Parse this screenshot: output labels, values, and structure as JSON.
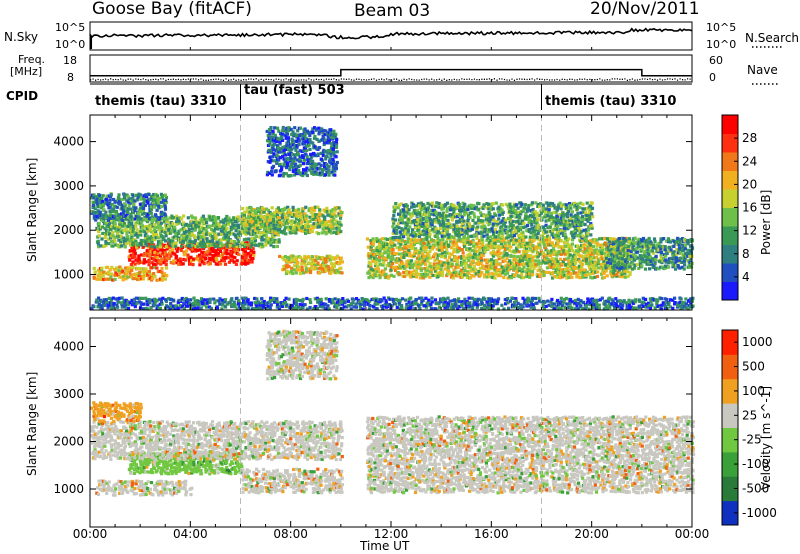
{
  "header": {
    "station": "Goose Bay (fitACF)",
    "beam": "Beam 03",
    "date": "20/Nov/2011"
  },
  "nsky_panel": {
    "left_label": "N.Sky",
    "left_ticks": [
      "10^5",
      "10^0"
    ],
    "right_ticks": [
      "10^5",
      "10^0"
    ],
    "right_label": "N.Search"
  },
  "freq_panel": {
    "left_label_1": "Freq.",
    "left_label_2": "[MHz]",
    "left_ticks": [
      "18",
      "8"
    ],
    "right_ticks": [
      "60",
      "0"
    ],
    "right_label": "Nave"
  },
  "cpid": {
    "label": "CPID",
    "segments": [
      {
        "name": "themis (tau) 3310",
        "start": 0.0,
        "end": 6.0
      },
      {
        "name": "tau (fast) 503",
        "start": 6.0,
        "end": 18.0
      },
      {
        "name": "themis (tau) 3310",
        "start": 18.0,
        "end": 24.0
      }
    ]
  },
  "chart_data": [
    {
      "type": "heatmap",
      "title": "",
      "ylabel": "Slant Range [km]",
      "xlabel": "Time UT",
      "xlim": [
        0,
        24
      ],
      "ylim": [
        200,
        4600
      ],
      "yticks": [
        "1000",
        "2000",
        "3000",
        "4000"
      ],
      "colorbar": {
        "label": "Power [dB]",
        "ticks": [
          "4",
          "8",
          "12",
          "16",
          "20",
          "24",
          "28"
        ],
        "colors": [
          "#1a1aff",
          "#2050c0",
          "#2f7f80",
          "#3a9a55",
          "#6ec04a",
          "#c8d030",
          "#f0b020",
          "#f07818",
          "#ff3010",
          "#ff0000"
        ]
      },
      "bands": [
        {
          "t0": 0.1,
          "t1": 3.0,
          "r_lo": 850,
          "r_hi": 1150,
          "level": 20
        },
        {
          "t0": 1.5,
          "t1": 6.5,
          "r_lo": 1200,
          "r_hi": 1700,
          "level": 26
        },
        {
          "t0": 0.2,
          "t1": 7.5,
          "r_lo": 1600,
          "r_hi": 2300,
          "level": 12
        },
        {
          "t0": 0.0,
          "t1": 3.0,
          "r_lo": 2200,
          "r_hi": 2800,
          "level": 8
        },
        {
          "t0": 6.0,
          "t1": 10.0,
          "r_lo": 1900,
          "r_hi": 2500,
          "level": 14
        },
        {
          "t0": 7.5,
          "t1": 10.0,
          "r_lo": 1000,
          "r_hi": 1400,
          "level": 18
        },
        {
          "t0": 7.0,
          "t1": 9.8,
          "r_lo": 3200,
          "r_hi": 4300,
          "level": 6
        },
        {
          "t0": 11.0,
          "t1": 21.5,
          "r_lo": 900,
          "r_hi": 1800,
          "level": 16
        },
        {
          "t0": 12.0,
          "t1": 20.0,
          "r_lo": 1800,
          "r_hi": 2600,
          "level": 11
        },
        {
          "t0": 20.5,
          "t1": 24.0,
          "r_lo": 1100,
          "r_hi": 1800,
          "level": 10
        },
        {
          "t0": 0.0,
          "t1": 24.0,
          "r_lo": 200,
          "r_hi": 450,
          "level": 6
        }
      ]
    },
    {
      "type": "heatmap",
      "title": "",
      "ylabel": "Slant Range [km]",
      "xlabel": "Time UT",
      "xlim": [
        0,
        24
      ],
      "ylim": [
        200,
        4600
      ],
      "yticks": [
        "1000",
        "2000",
        "3000",
        "4000"
      ],
      "colorbar": {
        "label": "Velocity [m s^-1]",
        "ticks": [
          "1000",
          "500",
          "100",
          "25",
          "-25",
          "-100",
          "-500",
          "-1000"
        ],
        "colors": [
          "#1030c0",
          "#2a7a3a",
          "#3aa03a",
          "#70c840",
          "#c8c8c0",
          "#f0a020",
          "#f06010",
          "#ff2000"
        ]
      },
      "bands": [
        {
          "t0": 0.2,
          "t1": 4.0,
          "r_lo": 850,
          "r_hi": 1150,
          "level": 4
        },
        {
          "t0": 1.5,
          "t1": 6.0,
          "r_lo": 1300,
          "r_hi": 1750,
          "level": 3
        },
        {
          "t0": 0.0,
          "t1": 10.0,
          "r_lo": 1600,
          "r_hi": 2400,
          "level": 4
        },
        {
          "t0": 6.0,
          "t1": 10.0,
          "r_lo": 900,
          "r_hi": 1400,
          "level": 4
        },
        {
          "t0": 7.0,
          "t1": 9.8,
          "r_lo": 3300,
          "r_hi": 4300,
          "level": 4
        },
        {
          "t0": 11.0,
          "t1": 24.0,
          "r_lo": 900,
          "r_hi": 2500,
          "level": 4
        },
        {
          "t0": 0.0,
          "t1": 2.0,
          "r_lo": 2400,
          "r_hi": 2800,
          "level": 5
        }
      ]
    }
  ],
  "xaxis": {
    "ticks": [
      "00:00",
      "04:00",
      "08:00",
      "12:00",
      "16:00",
      "20:00",
      "00:00"
    ],
    "label": "Time UT"
  }
}
